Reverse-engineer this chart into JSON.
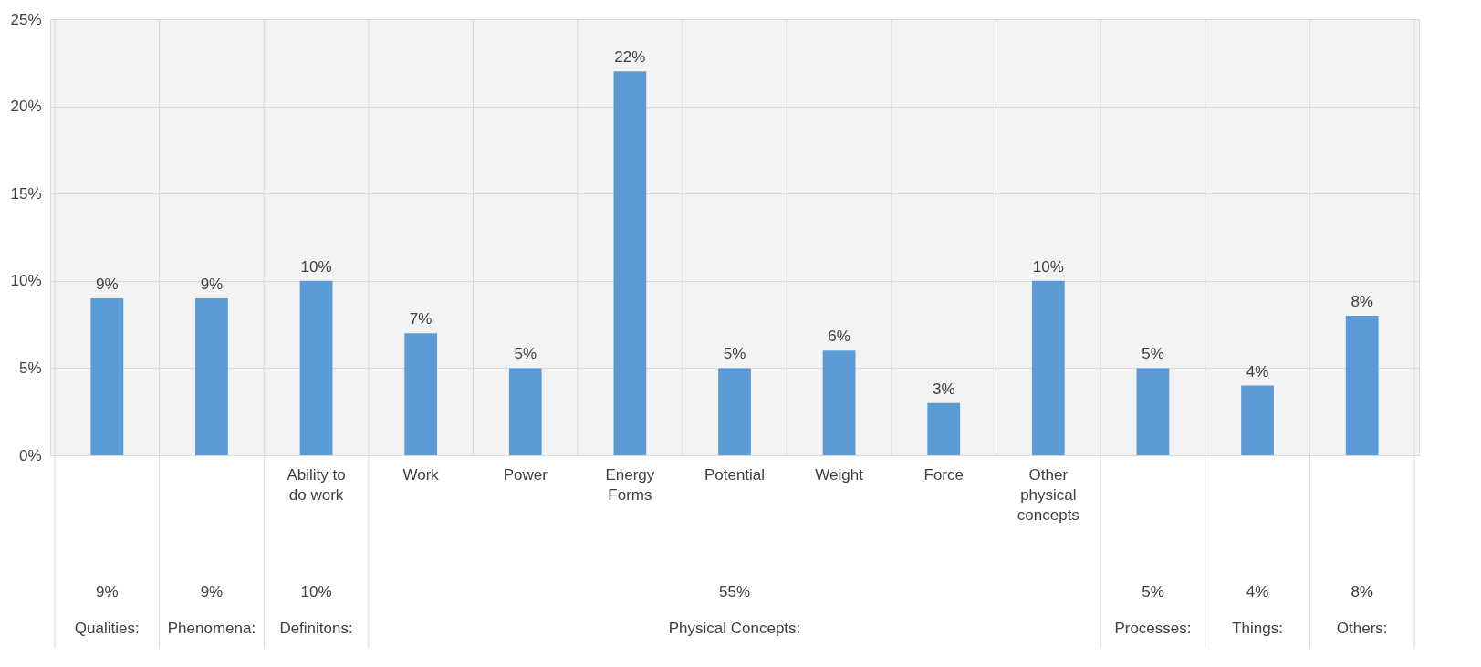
{
  "chart_data": {
    "type": "bar",
    "categories": [
      null,
      null,
      "Ability to do work",
      "Work",
      "Power",
      "Energy Forms",
      "Potential",
      "Weight",
      "Force",
      "Other physical concepts",
      null,
      null,
      null
    ],
    "values": [
      9,
      9,
      10,
      7,
      5,
      22,
      5,
      6,
      3,
      10,
      5,
      4,
      8
    ],
    "value_labels": [
      "9%",
      "9%",
      "10%",
      "7%",
      "5%",
      "22%",
      "5%",
      "6%",
      "3%",
      "10%",
      "5%",
      "4%",
      "8%"
    ],
    "color": "#5b9bd5",
    "ylim": [
      0,
      25
    ],
    "yticks": [
      {
        "value": 0,
        "label": "0%"
      },
      {
        "value": 5,
        "label": "5%"
      },
      {
        "value": 10,
        "label": "10%"
      },
      {
        "value": 15,
        "label": "15%"
      },
      {
        "value": 20,
        "label": "20%"
      },
      {
        "value": 25,
        "label": "25%"
      }
    ],
    "grid": true,
    "annotations": [
      "9%",
      "Qualities:",
      "9%",
      "Phenomena:",
      "10%",
      "Definitons:",
      "55%",
      "Physical Concepts:",
      "5%",
      "Processes:",
      "4%",
      "Things:",
      "8%",
      "Others:"
    ]
  }
}
